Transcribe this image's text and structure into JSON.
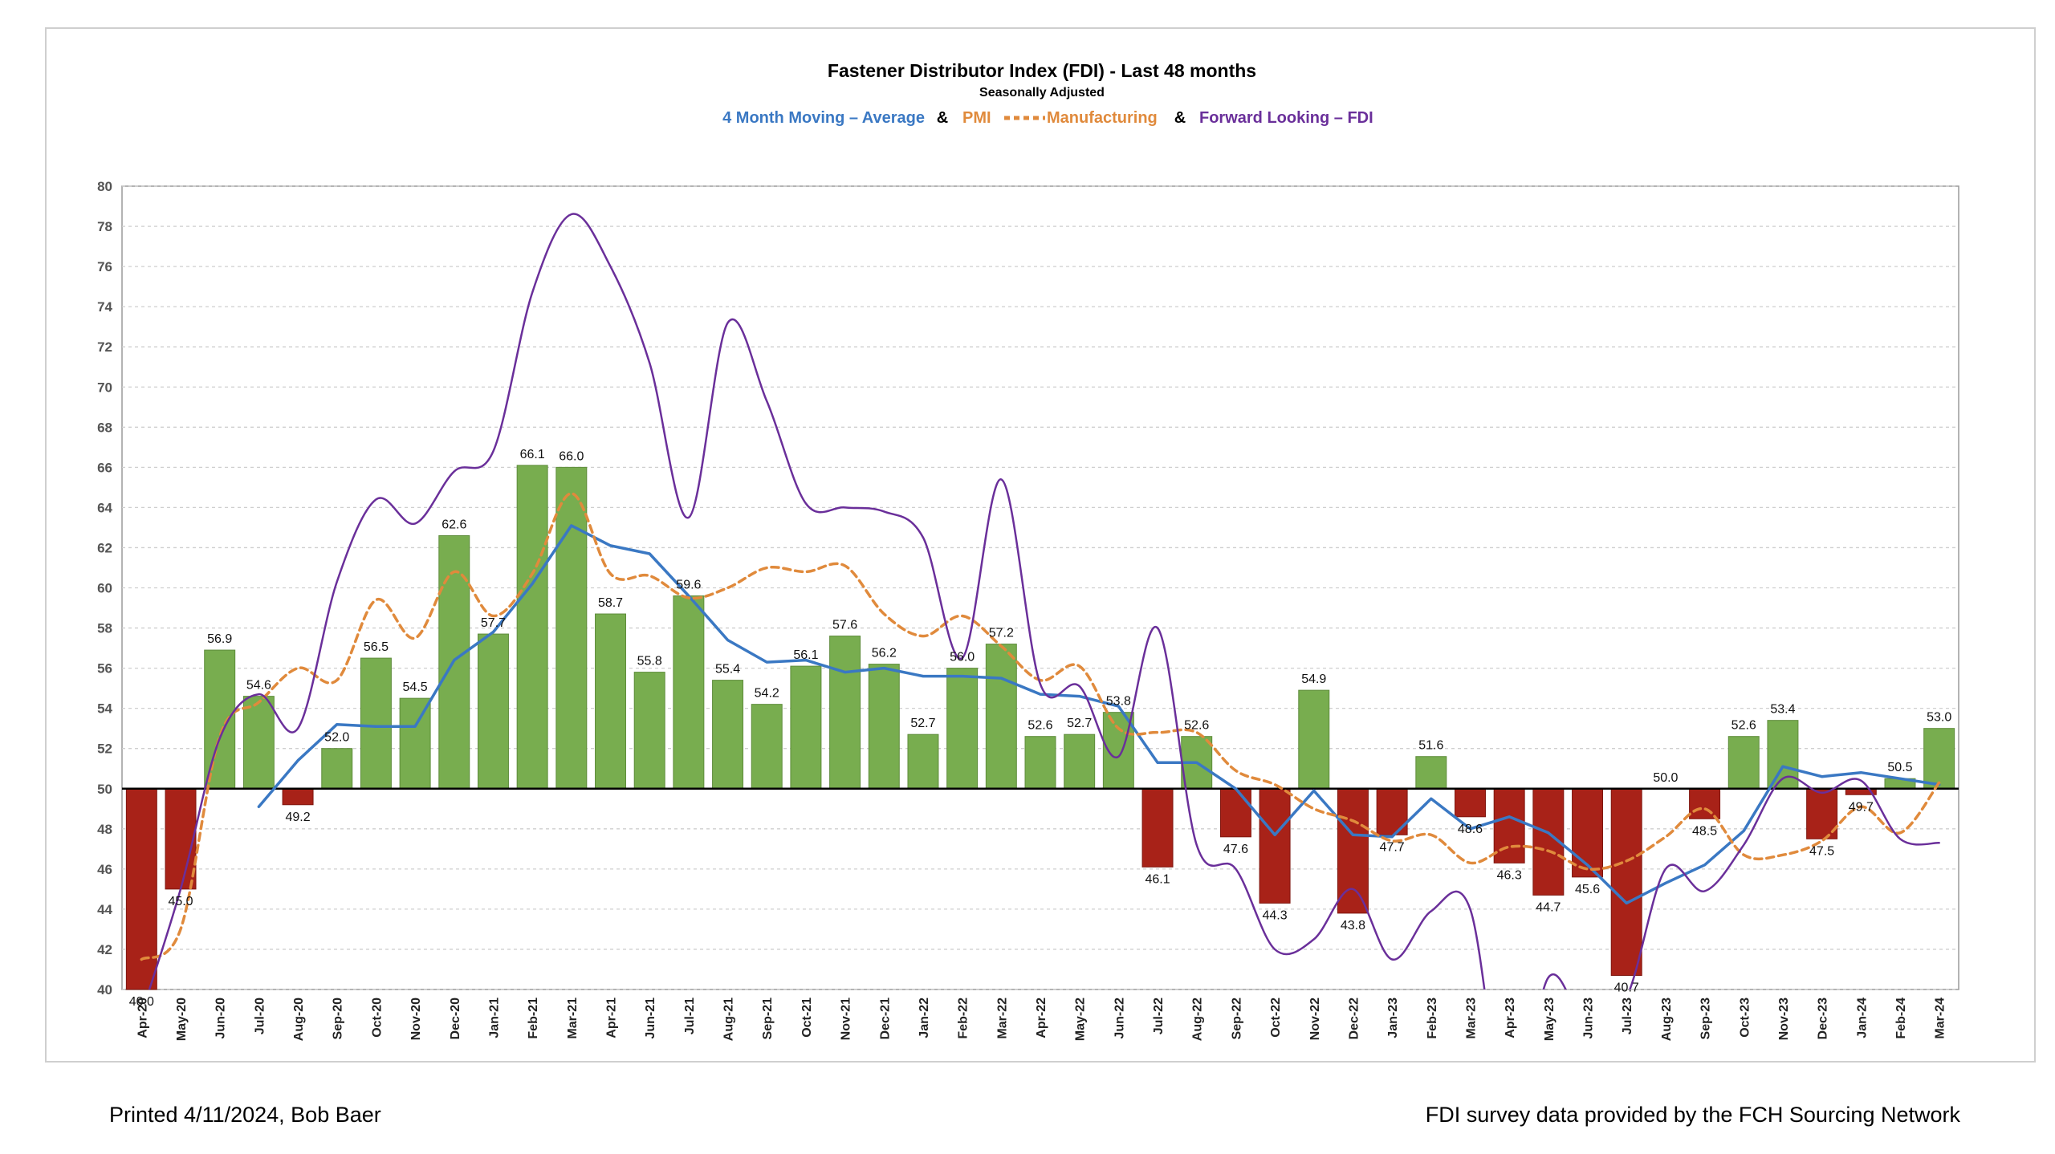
{
  "chart_data": {
    "type": "bar",
    "title": "Fastener Distributor Index (FDI) - Last 48 months",
    "subtitle": "Seasonally Adjusted",
    "legend": {
      "ma_label": "4 Month Moving – Average",
      "amp1": "&",
      "pmi_label_a": "PMI",
      "pmi_label_b": "Manufacturing",
      "amp2": "&",
      "fwd_label": "Forward Looking – FDI",
      "ma_color": "#3a78c3",
      "pmi_color": "#e08a3c",
      "fwd_color": "#6a2f9a"
    },
    "ylim": [
      40,
      80
    ],
    "y_ticks": [
      40,
      42,
      44,
      46,
      48,
      50,
      52,
      54,
      56,
      58,
      60,
      62,
      64,
      66,
      68,
      70,
      72,
      74,
      76,
      78,
      80
    ],
    "baseline": 50,
    "grid": true,
    "colors": {
      "above": "#78ad4f",
      "below": "#a82218"
    },
    "categories": [
      "Apr-20",
      "May-20",
      "Jun-20",
      "Jul-20",
      "Aug-20",
      "Sep-20",
      "Oct-20",
      "Nov-20",
      "Dec-20",
      "Jan-21",
      "Feb-21",
      "Mar-21",
      "Apr-21",
      "Jun-21",
      "Jul-21",
      "Aug-21",
      "Sep-21",
      "Oct-21",
      "Nov-21",
      "Dec-21",
      "Jan-22",
      "Feb-22",
      "Mar-22",
      "Apr-22",
      "May-22",
      "Jun-22",
      "Jul-22",
      "Aug-22",
      "Sep-22",
      "Oct-22",
      "Nov-22",
      "Dec-22",
      "Jan-23",
      "Feb-23",
      "Mar-23",
      "Apr-23",
      "May-23",
      "Jun-23",
      "Jul-23",
      "Aug-23",
      "Sep-23",
      "Oct-23",
      "Nov-23",
      "Dec-23",
      "Jan-24",
      "Feb-24",
      "Mar-24"
    ],
    "series": [
      {
        "type": "bar",
        "values": [
          40.0,
          45.0,
          56.9,
          54.6,
          49.2,
          52.0,
          56.5,
          54.5,
          62.6,
          57.7,
          66.1,
          66.0,
          58.7,
          55.8,
          59.6,
          55.4,
          54.2,
          56.1,
          57.6,
          56.2,
          52.7,
          56.0,
          57.2,
          52.6,
          52.7,
          53.8,
          46.1,
          52.6,
          47.6,
          44.3,
          54.9,
          43.8,
          47.7,
          51.6,
          48.6,
          46.3,
          44.7,
          45.6,
          40.7,
          50.0,
          48.5,
          52.6,
          53.4,
          47.5,
          49.7,
          50.5,
          53.0
        ],
        "labels": [
          "40.0",
          "45.0",
          "56.9",
          "54.6",
          "49.2",
          "52.0",
          "56.5",
          "54.5",
          "62.6",
          "57.7",
          "66.1",
          "66.0",
          "58.7",
          "55.8",
          "59.6",
          "55.4",
          "54.2",
          "56.1",
          "57.6",
          "56.2",
          "52.7",
          "56.0",
          "57.2",
          "52.6",
          "52.7",
          "53.8",
          "46.1",
          "52.6",
          "47.6",
          "44.3",
          "54.9",
          "43.8",
          "47.7",
          "51.6",
          "48.6",
          "46.3",
          "44.7",
          "45.6",
          "40.7",
          "50.0",
          "48.5",
          "52.6",
          "53.4",
          "47.5",
          "49.7",
          "50.5",
          "53.0"
        ]
      },
      {
        "type": "line",
        "key": "ma",
        "values": [
          null,
          null,
          null,
          49.1,
          51.4,
          53.2,
          53.1,
          53.1,
          56.4,
          57.8,
          60.2,
          63.1,
          62.1,
          61.7,
          59.6,
          57.4,
          56.3,
          56.4,
          55.8,
          56.0,
          55.6,
          55.6,
          55.5,
          54.7,
          54.6,
          54.1,
          51.3,
          51.3,
          50.0,
          47.7,
          49.9,
          47.7,
          47.6,
          49.5,
          48.0,
          48.6,
          47.8,
          46.2,
          44.3,
          45.3,
          46.2,
          47.9,
          51.1,
          50.6,
          50.8,
          50.5,
          50.2
        ]
      },
      {
        "type": "line",
        "key": "pmi",
        "values": [
          41.5,
          43.0,
          52.6,
          54.3,
          56.0,
          55.4,
          59.4,
          57.5,
          60.8,
          58.6,
          60.7,
          64.7,
          60.7,
          60.6,
          59.5,
          60.0,
          61.0,
          60.8,
          61.1,
          58.7,
          57.6,
          58.6,
          57.1,
          55.4,
          56.1,
          53.0,
          52.8,
          52.8,
          50.9,
          50.2,
          49.0,
          48.4,
          47.4,
          47.7,
          46.3,
          47.1,
          46.9,
          46.0,
          46.4,
          47.6,
          49.0,
          46.7,
          46.7,
          47.4,
          49.1,
          47.8,
          50.3
        ]
      },
      {
        "type": "line",
        "key": "fwd",
        "values": [
          38.8,
          45.0,
          52.5,
          54.7,
          53.0,
          60.3,
          64.4,
          63.2,
          65.8,
          66.8,
          74.7,
          78.6,
          76.0,
          71.2,
          63.5,
          73.2,
          69.3,
          64.2,
          64.0,
          63.8,
          62.5,
          56.5,
          65.4,
          55.2,
          55.1,
          51.6,
          58.0,
          47.2,
          46.0,
          42.0,
          42.5,
          45.0,
          41.5,
          43.9,
          44.0,
          33.0,
          40.6,
          38.2,
          39.6,
          46.0,
          44.9,
          47.2,
          50.5,
          49.8,
          50.4,
          47.5,
          47.3
        ]
      }
    ]
  },
  "footer": {
    "left": "Printed 4/11/2024, Bob Baer",
    "right": "FDI survey data provided by the FCH Sourcing Network"
  }
}
